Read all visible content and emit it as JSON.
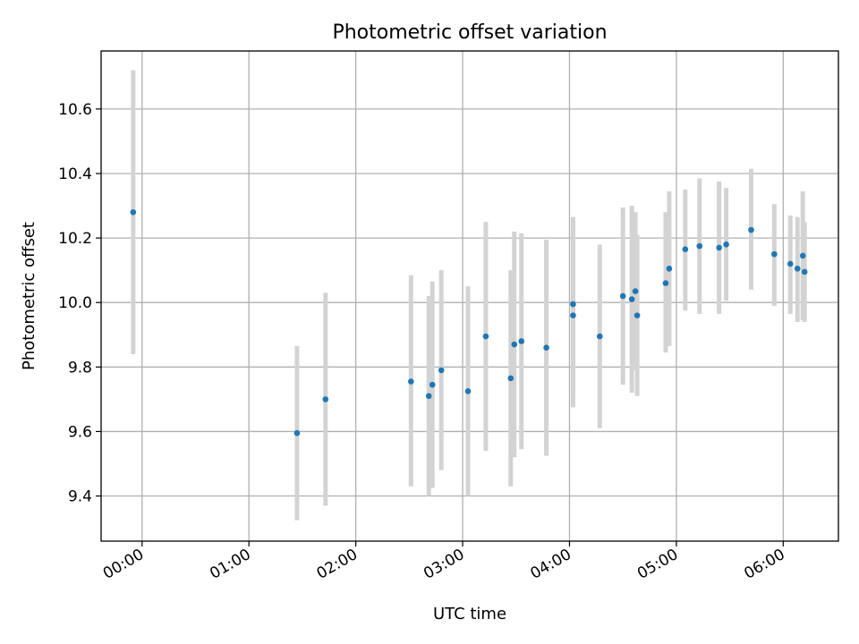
{
  "chart_data": {
    "type": "scatter",
    "title": "Photometric offset variation",
    "xlabel": "UTC time",
    "ylabel": "Photometric offset",
    "x_axis_kind": "time",
    "x_tick_times": [
      "00:00",
      "01:00",
      "02:00",
      "03:00",
      "04:00",
      "05:00",
      "06:00"
    ],
    "y_ticks": [
      9.4,
      9.6,
      9.8,
      10.0,
      10.2,
      10.4,
      10.6
    ],
    "xlim": [
      "-00:23",
      "06:31"
    ],
    "ylim": [
      9.26,
      10.78
    ],
    "grid": true,
    "legend": "none",
    "colors": {
      "points": "#1f77b4",
      "error_bars": "#d3d3d3",
      "grid": "#b0b0b0"
    },
    "series": [
      {
        "points": [
          {
            "x": "-00:05",
            "y": 10.28,
            "ylow": 9.84,
            "yhigh": 10.72
          },
          {
            "x": "01:27",
            "y": 9.595,
            "ylow": 9.325,
            "yhigh": 9.865
          },
          {
            "x": "01:43",
            "y": 9.7,
            "ylow": 9.37,
            "yhigh": 10.03
          },
          {
            "x": "02:31",
            "y": 9.755,
            "ylow": 9.43,
            "yhigh": 10.085
          },
          {
            "x": "02:41",
            "y": 9.71,
            "ylow": 9.4,
            "yhigh": 10.02
          },
          {
            "x": "02:43",
            "y": 9.745,
            "ylow": 9.425,
            "yhigh": 10.065
          },
          {
            "x": "02:48",
            "y": 9.79,
            "ylow": 9.48,
            "yhigh": 10.1
          },
          {
            "x": "03:03",
            "y": 9.725,
            "ylow": 9.4,
            "yhigh": 10.05
          },
          {
            "x": "03:13",
            "y": 9.895,
            "ylow": 9.54,
            "yhigh": 10.25
          },
          {
            "x": "03:27",
            "y": 9.765,
            "ylow": 9.43,
            "yhigh": 10.1
          },
          {
            "x": "03:29",
            "y": 9.87,
            "ylow": 9.52,
            "yhigh": 10.22
          },
          {
            "x": "03:33",
            "y": 9.88,
            "ylow": 9.545,
            "yhigh": 10.215
          },
          {
            "x": "03:47",
            "y": 9.86,
            "ylow": 9.525,
            "yhigh": 10.195
          },
          {
            "x": "04:02",
            "y": 9.96,
            "ylow": 9.675,
            "yhigh": 10.245
          },
          {
            "x": "04:02",
            "y": 9.995,
            "ylow": 9.73,
            "yhigh": 10.265
          },
          {
            "x": "04:17",
            "y": 9.895,
            "ylow": 9.61,
            "yhigh": 10.18
          },
          {
            "x": "04:30",
            "y": 10.02,
            "ylow": 9.745,
            "yhigh": 10.295
          },
          {
            "x": "04:35",
            "y": 10.01,
            "ylow": 9.72,
            "yhigh": 10.3
          },
          {
            "x": "04:37",
            "y": 10.035,
            "ylow": 9.79,
            "yhigh": 10.28
          },
          {
            "x": "04:38",
            "y": 9.96,
            "ylow": 9.71,
            "yhigh": 10.21
          },
          {
            "x": "04:54",
            "y": 10.06,
            "ylow": 9.845,
            "yhigh": 10.28
          },
          {
            "x": "04:56",
            "y": 10.105,
            "ylow": 9.865,
            "yhigh": 10.345
          },
          {
            "x": "05:05",
            "y": 10.165,
            "ylow": 9.975,
            "yhigh": 10.35
          },
          {
            "x": "05:13",
            "y": 10.175,
            "ylow": 9.965,
            "yhigh": 10.385
          },
          {
            "x": "05:24",
            "y": 10.17,
            "ylow": 9.965,
            "yhigh": 10.375
          },
          {
            "x": "05:28",
            "y": 10.18,
            "ylow": 10.005,
            "yhigh": 10.355
          },
          {
            "x": "05:42",
            "y": 10.225,
            "ylow": 10.04,
            "yhigh": 10.415
          },
          {
            "x": "05:55",
            "y": 10.15,
            "ylow": 9.99,
            "yhigh": 10.305
          },
          {
            "x": "06:04",
            "y": 10.12,
            "ylow": 9.965,
            "yhigh": 10.27
          },
          {
            "x": "06:08",
            "y": 10.105,
            "ylow": 9.94,
            "yhigh": 10.265
          },
          {
            "x": "06:11",
            "y": 10.145,
            "ylow": 9.945,
            "yhigh": 10.345
          },
          {
            "x": "06:12",
            "y": 10.095,
            "ylow": 9.94,
            "yhigh": 10.25
          }
        ]
      }
    ]
  }
}
